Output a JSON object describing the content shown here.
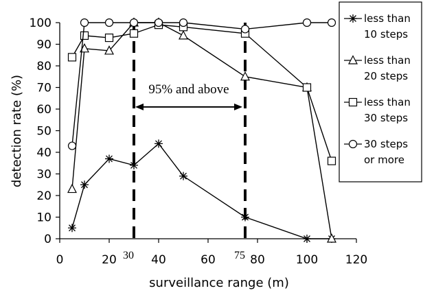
{
  "chart_data": {
    "type": "line",
    "xlabel": "surveillance range (m)",
    "ylabel": "detection rate (%)",
    "xlim": [
      0,
      120
    ],
    "ylim": [
      0,
      100
    ],
    "x_ticks": [
      "0",
      "20",
      "40",
      "60",
      "80",
      "100",
      "120"
    ],
    "y_ticks": [
      "0",
      "10",
      "20",
      "30",
      "40",
      "50",
      "60",
      "70",
      "80",
      "90",
      "100"
    ],
    "grid": false,
    "legend_position": "right-outside",
    "series": [
      {
        "name": "less than 10 steps",
        "marker": "asterisk",
        "x": [
          5,
          10,
          20,
          30,
          40,
          50,
          75,
          100,
          110
        ],
        "y": [
          5,
          25,
          37,
          34,
          44,
          29,
          10,
          0,
          0
        ]
      },
      {
        "name": "less than 20 steps",
        "marker": "triangle",
        "x": [
          5,
          10,
          20,
          30,
          40,
          50,
          75,
          100,
          110
        ],
        "y": [
          23,
          88,
          87,
          100,
          100,
          94,
          75,
          70,
          0
        ]
      },
      {
        "name": "less than 30 steps",
        "marker": "square",
        "x": [
          5,
          10,
          20,
          30,
          40,
          50,
          75,
          100,
          110
        ],
        "y": [
          84,
          94,
          93,
          95,
          99,
          98,
          95,
          70,
          36
        ]
      },
      {
        "name": "30 steps or more",
        "marker": "circle",
        "x": [
          5,
          10,
          20,
          30,
          40,
          50,
          75,
          100,
          110
        ],
        "y": [
          43,
          100,
          100,
          100,
          100,
          100,
          97,
          100,
          100
        ]
      }
    ],
    "legend": [
      {
        "line1": "less than",
        "line2": "10 steps"
      },
      {
        "line1": "less than",
        "line2": "20 steps"
      },
      {
        "line1": "less than",
        "line2": "30 steps"
      },
      {
        "line1": "30 steps",
        "line2": "or more"
      }
    ],
    "annotations": {
      "band_text": "95% and above",
      "x_markers": [
        30,
        75
      ],
      "x_marker_labels": [
        "30",
        "75"
      ],
      "band_range": [
        30,
        75
      ],
      "band_arrow_y": 61
    }
  }
}
